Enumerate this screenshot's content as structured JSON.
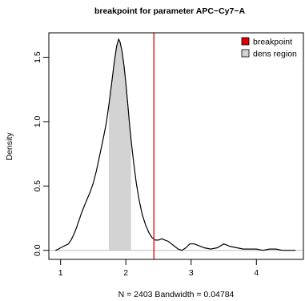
{
  "chart_data": {
    "type": "area",
    "title": "breakpoint for parameter APC−Cy7−A",
    "xlabel": "N = 2403   Bandwidth = 0.04784",
    "ylabel": "Density",
    "xlim": [
      0.82,
      4.72
    ],
    "ylim": [
      -0.07,
      1.69
    ],
    "x_ticks": [
      1,
      2,
      3,
      4
    ],
    "y_ticks": [
      0.0,
      0.5,
      1.0,
      1.5
    ],
    "y_tick_labels": [
      "0.0",
      "0.5",
      "1.0",
      "1.5"
    ],
    "density": {
      "x": [
        0.92,
        0.97,
        1.0,
        1.04,
        1.08,
        1.12,
        1.16,
        1.2,
        1.24,
        1.28,
        1.32,
        1.36,
        1.4,
        1.45,
        1.5,
        1.55,
        1.6,
        1.65,
        1.7,
        1.74,
        1.78,
        1.82,
        1.86,
        1.89,
        1.91,
        1.94,
        1.97,
        2.0,
        2.03,
        2.06,
        2.09,
        2.12,
        2.16,
        2.2,
        2.25,
        2.3,
        2.35,
        2.4,
        2.45,
        2.5,
        2.55,
        2.6,
        2.65,
        2.7,
        2.75,
        2.8,
        2.86,
        2.92,
        2.98,
        3.05,
        3.1,
        3.15,
        3.2,
        3.3,
        3.4,
        3.5,
        3.6,
        3.7,
        3.8,
        3.9,
        4.0,
        4.1,
        4.2,
        4.3,
        4.4,
        4.5,
        4.6
      ],
      "y": [
        0.0,
        0.01,
        0.02,
        0.03,
        0.04,
        0.05,
        0.08,
        0.12,
        0.17,
        0.23,
        0.29,
        0.34,
        0.39,
        0.45,
        0.52,
        0.62,
        0.74,
        0.86,
        0.99,
        1.13,
        1.29,
        1.45,
        1.59,
        1.64,
        1.62,
        1.55,
        1.44,
        1.3,
        1.13,
        0.96,
        0.81,
        0.68,
        0.52,
        0.4,
        0.28,
        0.2,
        0.14,
        0.1,
        0.08,
        0.08,
        0.09,
        0.08,
        0.07,
        0.05,
        0.03,
        0.01,
        0.0,
        0.02,
        0.05,
        0.05,
        0.04,
        0.03,
        0.02,
        0.01,
        0.02,
        0.05,
        0.03,
        0.02,
        0.01,
        0.01,
        0.01,
        0.0,
        0.01,
        0.01,
        0.0,
        0.0,
        0.0
      ]
    },
    "density_region": [
      1.74,
      2.08
    ],
    "breakpoint": 2.43,
    "legend": [
      {
        "label": "breakpoint",
        "color": "#dd0000"
      },
      {
        "label": "dens region",
        "color": "#d3d3d3"
      }
    ],
    "legend_position": "top-right",
    "colors": {
      "line": "#000000",
      "region": "#d3d3d3",
      "breakpoint": "#dd2222",
      "baseline": "#bebebe"
    }
  }
}
